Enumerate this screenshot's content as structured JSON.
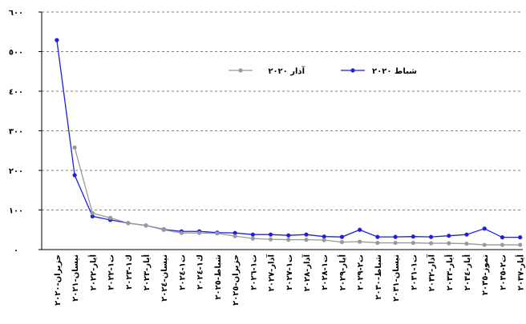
{
  "chart_data": {
    "type": "line",
    "categories": [
      "حزيران-٢٠٢٠",
      "نيسان-٢٠٢١",
      "أيار-٢٠٢٢",
      "ت١-٢٠٢٢",
      "ك١-٢٠٢٣",
      "أيار-٢٠٢٣",
      "نيسان-٢٠٢٤",
      "ت١-٢٠٢٤",
      "ك١-٢٠٢٤",
      "شباط-٢٠٢٥",
      "حزيران-٢٠٢٥",
      "ت١-٢٠٢٦",
      "آذار-٢٠٢٧",
      "ت١-٢٠٢٧",
      "آذار-٢٠٢٨",
      "ت١-٢٠٢٨",
      "أيار-٢٠٢٩",
      "ت٢-٢٠٢٩",
      "شباط-٢٠٣٠",
      "نيسان-٢٠٣١",
      "ت١-٢٠٣١",
      "آذار-٢٠٣٢",
      "أيار-٢٠٣٣",
      "أيار-٢٠٣٤",
      "تموز-٢٠٣٥",
      "ت٢-٢٠٣٥",
      "أيار-٢٠٣٧"
    ],
    "series": [
      {
        "name": "شباط ٢٠٢٠",
        "color": "#1f1fe0",
        "values": [
          529,
          188,
          84,
          75,
          67,
          61,
          51,
          46,
          46,
          43,
          42,
          38,
          38,
          36,
          38,
          33,
          32,
          50,
          32,
          32,
          33,
          32,
          35,
          38,
          53,
          31,
          31
        ]
      },
      {
        "name": "آذار ٢٠٢٠",
        "color": "#999999",
        "values": [
          null,
          258,
          92,
          80,
          67,
          61,
          50,
          42,
          42,
          41,
          34,
          28,
          26,
          25,
          25,
          24,
          19,
          20,
          17,
          17,
          17,
          16,
          16,
          15,
          12,
          12,
          12
        ]
      }
    ],
    "ylim": [
      0,
      600
    ],
    "yticks": [
      {
        "value": 0,
        "label": "٠"
      },
      {
        "value": 100,
        "label": "١٠٠"
      },
      {
        "value": 200,
        "label": "٢٠٠"
      },
      {
        "value": 300,
        "label": "٣٠٠"
      },
      {
        "value": 400,
        "label": "٤٠٠"
      },
      {
        "value": 500,
        "label": "٥٠٠"
      },
      {
        "value": 600,
        "label": "٦٠٠"
      }
    ],
    "grid": true,
    "legend": "top"
  }
}
